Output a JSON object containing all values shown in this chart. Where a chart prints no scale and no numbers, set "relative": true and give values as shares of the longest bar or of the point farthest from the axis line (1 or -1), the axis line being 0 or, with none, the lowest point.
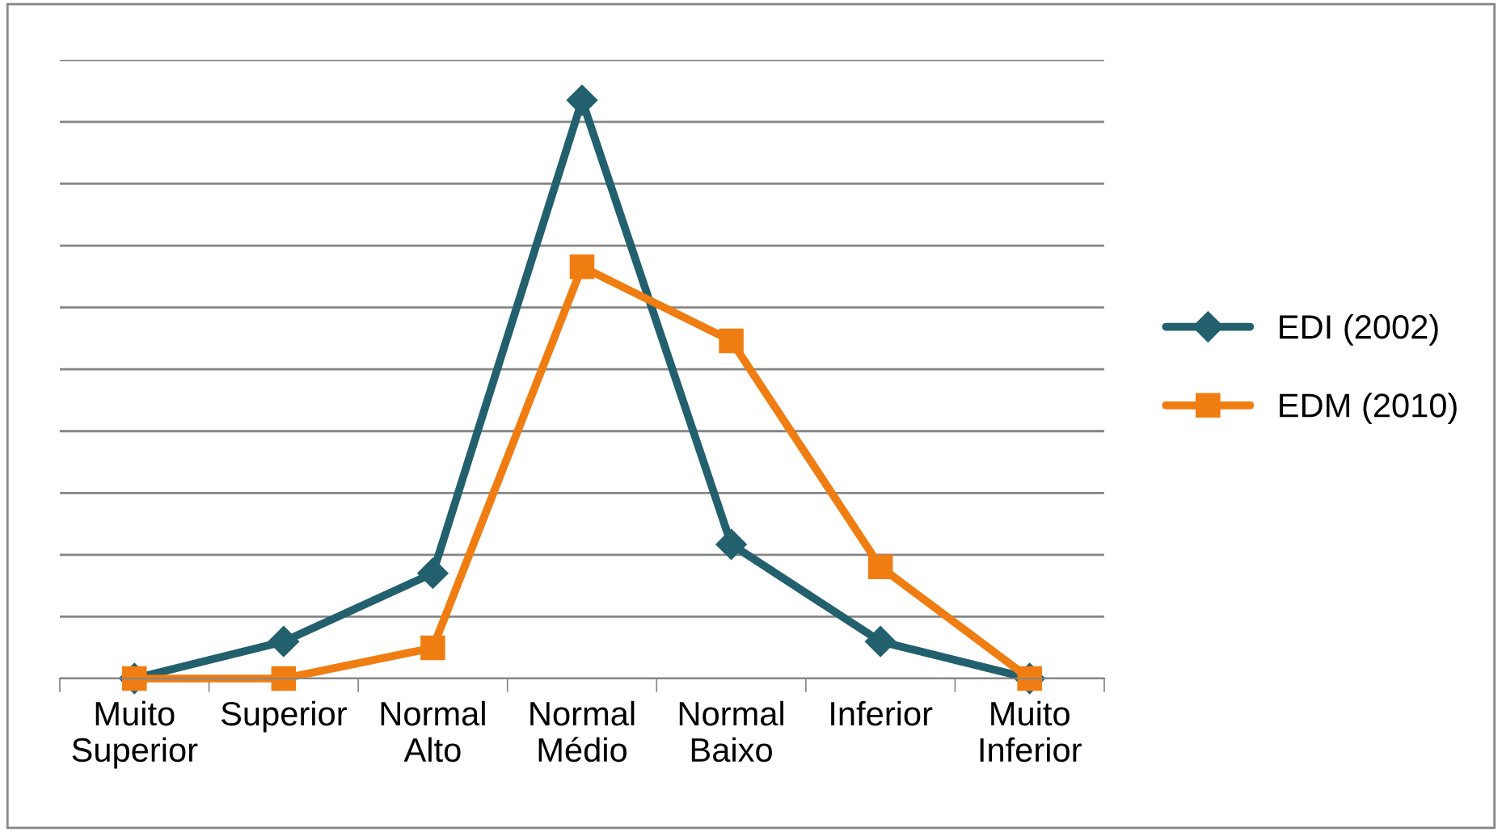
{
  "chart_data": {
    "type": "line",
    "relative": true,
    "grid": "y",
    "legend": "right",
    "categories": [
      "Muito Superior",
      "Superior",
      "Normal Alto",
      "Normal Médio",
      "Normal Baixo",
      "Inferior",
      "Muito Inferior"
    ],
    "series": [
      {
        "name": "EDI (2002)",
        "color": "#23606e",
        "marker": "diamond",
        "values": [
          0,
          0.064,
          0.182,
          1,
          0.232,
          0.064,
          0
        ]
      },
      {
        "name": "EDM (2010)",
        "color": "#f07d12",
        "marker": "square",
        "values": [
          0,
          0,
          0.053,
          0.712,
          0.584,
          0.193,
          0
        ]
      }
    ]
  }
}
